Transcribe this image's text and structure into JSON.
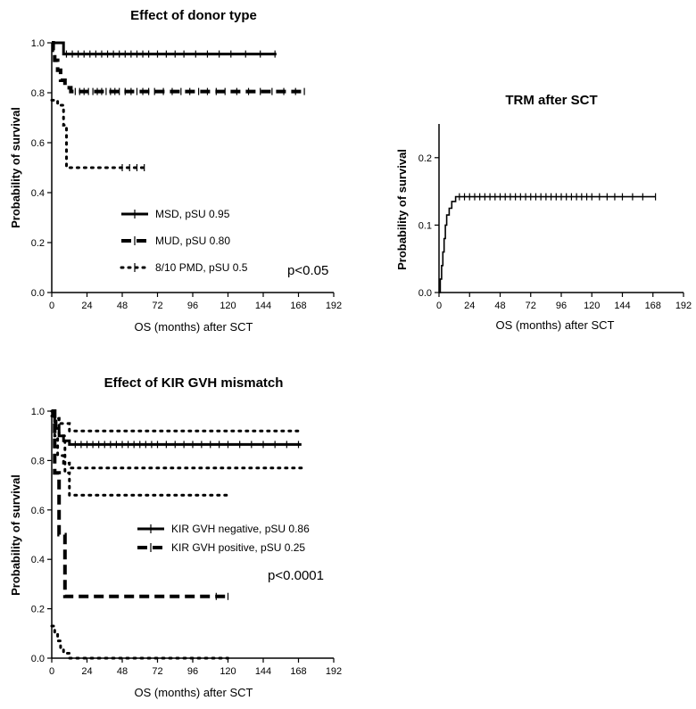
{
  "chart_data": [
    {
      "id": "donor",
      "type": "line",
      "subtype": "kaplan-meier",
      "title": "Effect of donor type",
      "xlabel": "OS (months) after SCT",
      "ylabel": "Probability of survival",
      "xlim": [
        0,
        192
      ],
      "ylim": [
        0,
        1.0
      ],
      "xticks": [
        0,
        24,
        48,
        72,
        96,
        120,
        144,
        168,
        192
      ],
      "yticks": [
        0.0,
        0.2,
        0.4,
        0.6,
        0.8,
        1.0
      ],
      "ytick_labels": [
        "0.0",
        "0.2",
        "0.4",
        "0.6",
        "0.8",
        "1.0"
      ],
      "legend_position": "bottom-left",
      "annotation": "p<0.05",
      "grid": false,
      "series": [
        {
          "name": "MSD, pSU 0.95",
          "style": "solid",
          "color": "#000000",
          "steps": [
            [
              0,
              1.0
            ],
            [
              8,
              1.0
            ],
            [
              8,
              0.955
            ],
            [
              153,
              0.955
            ]
          ],
          "censors": [
            10,
            14,
            18,
            22,
            26,
            30,
            34,
            38,
            42,
            46,
            50,
            54,
            58,
            62,
            66,
            72,
            78,
            84,
            90,
            98,
            106,
            114,
            122,
            132,
            142,
            152
          ]
        },
        {
          "name": "MUD, pSU 0.80",
          "style": "dashed",
          "color": "#000000",
          "steps": [
            [
              0,
              1.0
            ],
            [
              1,
              1.0
            ],
            [
              1,
              0.97
            ],
            [
              2,
              0.97
            ],
            [
              2,
              0.93
            ],
            [
              4,
              0.93
            ],
            [
              4,
              0.89
            ],
            [
              6,
              0.89
            ],
            [
              6,
              0.85
            ],
            [
              9,
              0.85
            ],
            [
              9,
              0.82
            ],
            [
              13,
              0.82
            ],
            [
              13,
              0.805
            ],
            [
              172,
              0.805
            ]
          ],
          "censors": [
            16,
            19,
            22,
            25,
            28,
            31,
            34,
            37,
            40,
            43,
            46,
            50,
            54,
            58,
            62,
            66,
            70,
            76,
            82,
            88,
            94,
            100,
            106,
            112,
            118,
            126,
            134,
            142,
            150,
            158,
            166,
            172
          ]
        },
        {
          "name": "8/10 PMD, pSU 0.5",
          "style": "dotted",
          "color": "#000000",
          "steps": [
            [
              0,
              0.77
            ],
            [
              4,
              0.77
            ],
            [
              4,
              0.75
            ],
            [
              8,
              0.75
            ],
            [
              8,
              0.67
            ],
            [
              10,
              0.67
            ],
            [
              10,
              0.5
            ],
            [
              65,
              0.5
            ]
          ],
          "censors": [
            48,
            53,
            58,
            63
          ]
        }
      ]
    },
    {
      "id": "trm",
      "type": "line",
      "subtype": "kaplan-meier",
      "title": "TRM after SCT",
      "xlabel": "OS (months) after SCT",
      "ylabel": "Probability of survival",
      "xlim": [
        0,
        192
      ],
      "ylim": [
        0,
        0.25
      ],
      "xticks": [
        0,
        24,
        48,
        72,
        96,
        120,
        144,
        168,
        192
      ],
      "yticks": [
        0.0,
        0.1,
        0.2
      ],
      "ytick_labels": [
        "0.0",
        "0.1",
        "0.2"
      ],
      "grid": false,
      "series": [
        {
          "style": "solid",
          "color": "#000000",
          "steps": [
            [
              0,
              0.0
            ],
            [
              1,
              0.0
            ],
            [
              1,
              0.02
            ],
            [
              2,
              0.02
            ],
            [
              2,
              0.04
            ],
            [
              3,
              0.04
            ],
            [
              3,
              0.06
            ],
            [
              4,
              0.06
            ],
            [
              4,
              0.08
            ],
            [
              5,
              0.08
            ],
            [
              5,
              0.1
            ],
            [
              6,
              0.1
            ],
            [
              6,
              0.115
            ],
            [
              8,
              0.115
            ],
            [
              8,
              0.125
            ],
            [
              10,
              0.125
            ],
            [
              10,
              0.135
            ],
            [
              13,
              0.135
            ],
            [
              13,
              0.142
            ],
            [
              170,
              0.142
            ]
          ],
          "censors": [
            16,
            20,
            24,
            28,
            32,
            36,
            40,
            44,
            48,
            52,
            56,
            60,
            64,
            68,
            72,
            76,
            80,
            84,
            88,
            92,
            96,
            100,
            104,
            108,
            112,
            116,
            120,
            126,
            132,
            138,
            144,
            152,
            160,
            170
          ]
        }
      ]
    },
    {
      "id": "kir",
      "type": "line",
      "subtype": "kaplan-meier",
      "title": "Effect of KIR GVH mismatch",
      "xlabel": "OS (months) after SCT",
      "ylabel": "Probability of survival",
      "xlim": [
        0,
        192
      ],
      "ylim": [
        0,
        1.0
      ],
      "xticks": [
        0,
        24,
        48,
        72,
        96,
        120,
        144,
        168,
        192
      ],
      "yticks": [
        0.0,
        0.2,
        0.4,
        0.6,
        0.8,
        1.0
      ],
      "ytick_labels": [
        "0.0",
        "0.2",
        "0.4",
        "0.6",
        "0.8",
        "1.0"
      ],
      "legend_position": "center-right",
      "annotation": "p<0.0001",
      "grid": false,
      "series": [
        {
          "name": "KIR GVH negative, pSU 0.86",
          "style": "solid",
          "color": "#000000",
          "steps": [
            [
              0,
              1.0
            ],
            [
              1,
              1.0
            ],
            [
              1,
              0.98
            ],
            [
              2,
              0.98
            ],
            [
              2,
              0.96
            ],
            [
              3,
              0.96
            ],
            [
              3,
              0.93
            ],
            [
              5,
              0.93
            ],
            [
              5,
              0.9
            ],
            [
              8,
              0.9
            ],
            [
              8,
              0.88
            ],
            [
              12,
              0.88
            ],
            [
              12,
              0.865
            ],
            [
              170,
              0.865
            ]
          ],
          "censors": [
            16,
            20,
            24,
            28,
            32,
            36,
            40,
            44,
            48,
            52,
            56,
            60,
            64,
            68,
            72,
            78,
            84,
            90,
            96,
            102,
            108,
            114,
            120,
            128,
            136,
            144,
            152,
            160,
            168
          ]
        },
        {
          "name": "KIR GVH positive, pSU 0.25",
          "style": "dashed",
          "color": "#000000",
          "steps": [
            [
              0,
              1.0
            ],
            [
              2,
              1.0
            ],
            [
              2,
              0.75
            ],
            [
              5,
              0.75
            ],
            [
              5,
              0.5
            ],
            [
              9,
              0.5
            ],
            [
              9,
              0.25
            ],
            [
              120,
              0.25
            ]
          ],
          "censors": [
            112,
            120
          ]
        },
        {
          "style": "dotted",
          "color": "#000000",
          "steps": [
            [
              0,
              1.0
            ],
            [
              2,
              1.0
            ],
            [
              2,
              0.97
            ],
            [
              5,
              0.97
            ],
            [
              5,
              0.95
            ],
            [
              12,
              0.95
            ],
            [
              12,
              0.92
            ],
            [
              170,
              0.92
            ]
          ]
        },
        {
          "style": "dotted",
          "color": "#000000",
          "steps": [
            [
              0,
              0.98
            ],
            [
              2,
              0.98
            ],
            [
              2,
              0.9
            ],
            [
              4,
              0.9
            ],
            [
              4,
              0.82
            ],
            [
              8,
              0.82
            ],
            [
              8,
              0.79
            ],
            [
              12,
              0.79
            ],
            [
              12,
              0.77
            ],
            [
              170,
              0.77
            ]
          ]
        },
        {
          "style": "dotted",
          "color": "#000000",
          "steps": [
            [
              0,
              1.0
            ],
            [
              2,
              1.0
            ],
            [
              2,
              0.97
            ],
            [
              5,
              0.97
            ],
            [
              5,
              0.9
            ],
            [
              9,
              0.9
            ],
            [
              9,
              0.75
            ],
            [
              12,
              0.75
            ],
            [
              12,
              0.66
            ],
            [
              120,
              0.66
            ]
          ]
        },
        {
          "style": "dotted",
          "color": "#000000",
          "steps": [
            [
              0,
              0.13
            ],
            [
              2,
              0.13
            ],
            [
              2,
              0.1
            ],
            [
              4,
              0.1
            ],
            [
              4,
              0.07
            ],
            [
              6,
              0.07
            ],
            [
              6,
              0.04
            ],
            [
              8,
              0.04
            ],
            [
              8,
              0.02
            ],
            [
              12,
              0.02
            ],
            [
              12,
              0.0
            ],
            [
              120,
              0.0
            ]
          ]
        }
      ]
    }
  ]
}
